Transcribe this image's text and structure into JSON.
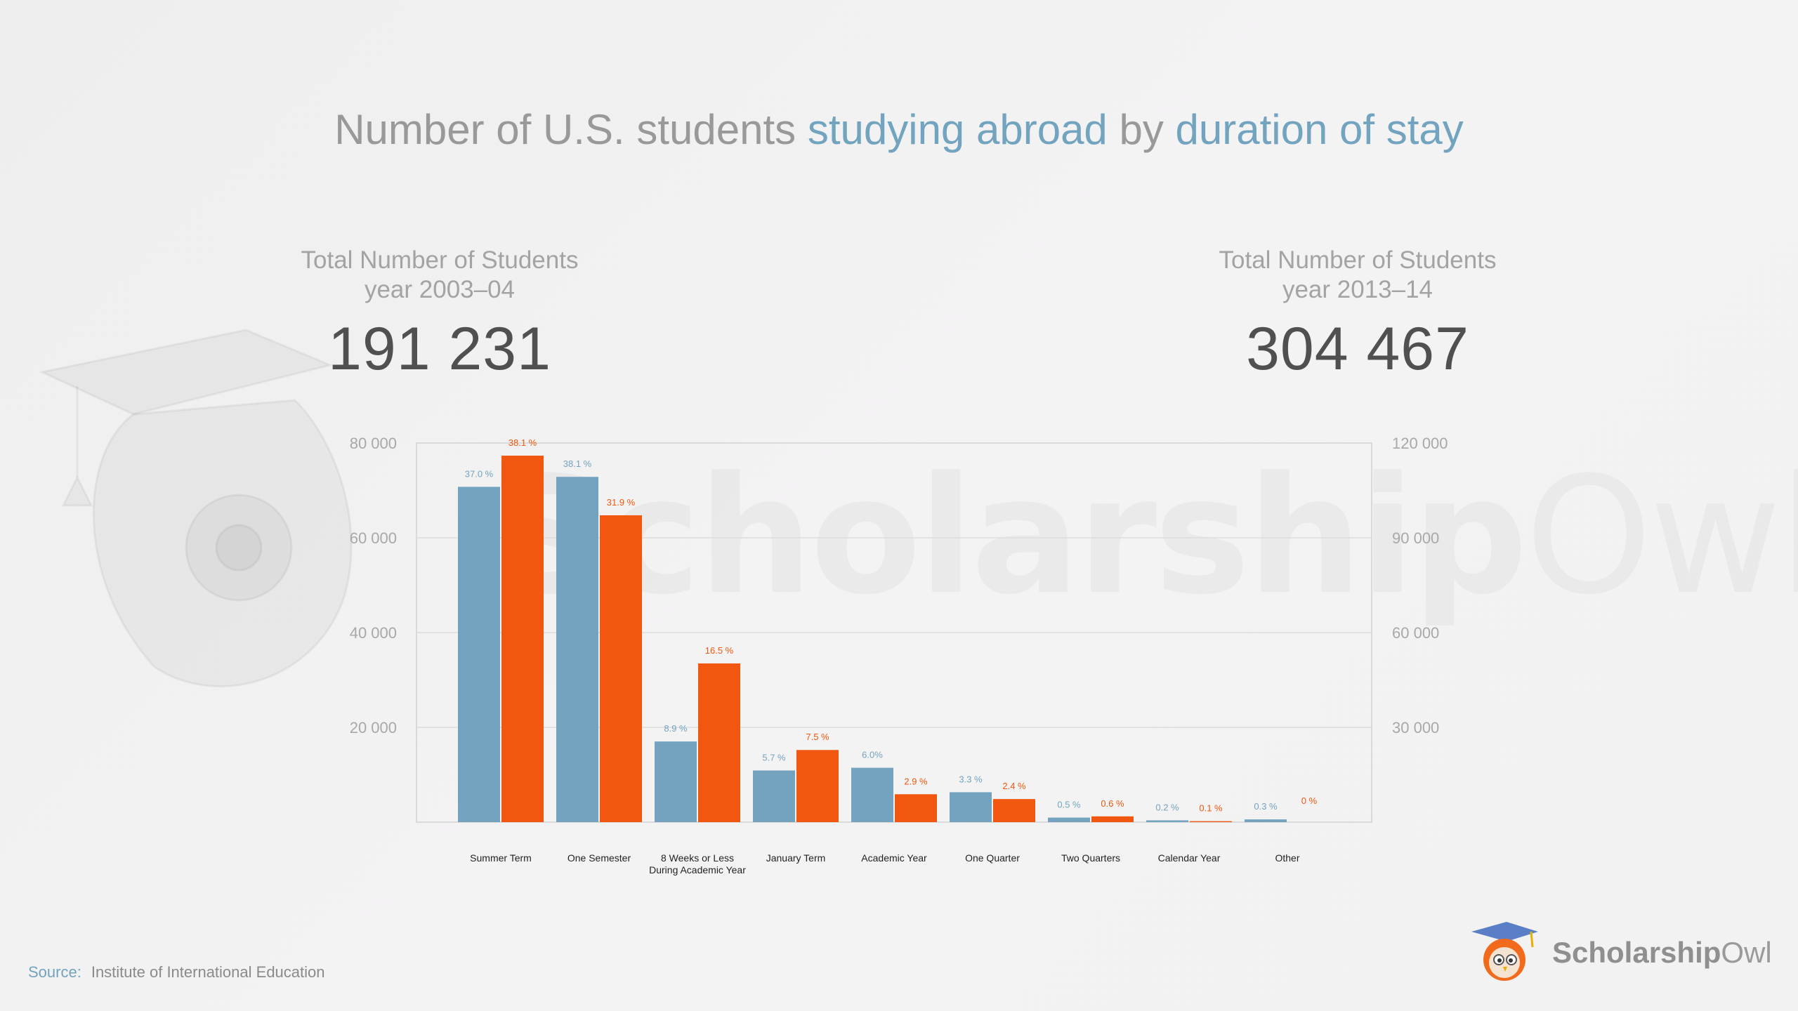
{
  "title": {
    "part1": "Number of U.S. students ",
    "part2": "studying abroad",
    "part3": " by ",
    "part4": "duration of stay"
  },
  "totals": {
    "left": {
      "label_line1": "Total Number of Students",
      "label_line2": "year 2003–04",
      "value": "191 231"
    },
    "right": {
      "label_line1": "Total Number of Students",
      "label_line2": "year 2013–14",
      "value": "304 467"
    }
  },
  "source": {
    "label": "Source:",
    "text": "Institute of International Education"
  },
  "brand": {
    "bold": "Scholarship",
    "light": "Owl"
  },
  "watermark": {
    "bold": "Scholarship",
    "light": "Owl"
  },
  "colors": {
    "series_2003": "#73a3bf",
    "series_2013": "#f2570f",
    "axis_text": "#a8a8a8",
    "grid": "#dddddd"
  },
  "chart_data": {
    "type": "bar",
    "categories": [
      "Summer Term",
      "One Semester",
      "8 Weeks or Less\nDuring Academic Year",
      "January Term",
      "Academic Year",
      "One Quarter",
      "Two Quarters",
      "Calendar Year",
      "Other"
    ],
    "series": [
      {
        "axis": "left",
        "values": [
          70755,
          72859,
          17020,
          10900,
          11474,
          6311,
          956,
          382,
          574
        ],
        "labels": [
          "37.0 %",
          "38.1 %",
          "8.9 %",
          "5.7 %",
          "6.0%",
          "3.3 %",
          "0.5 %",
          "0.2 %",
          "0.3 %"
        ]
      },
      {
        "axis": "right",
        "values": [
          116002,
          97125,
          50237,
          22835,
          8830,
          7307,
          1827,
          304,
          0
        ],
        "labels": [
          "38.1 %",
          "31.9 %",
          "16.5 %",
          "7.5 %",
          "2.9 %",
          "2.4 %",
          "0.6 %",
          "0.1 %",
          "0 %"
        ]
      }
    ],
    "y_left": {
      "min": 0,
      "max": 80000,
      "ticks": [
        20000,
        40000,
        60000,
        80000
      ],
      "tick_labels": [
        "20 000",
        "40 000",
        "60 000",
        "80 000"
      ]
    },
    "y_right": {
      "min": 0,
      "max": 120000,
      "ticks": [
        30000,
        60000,
        90000,
        120000
      ],
      "tick_labels": [
        "30 000",
        "60 000",
        "90 000",
        "120 000"
      ]
    },
    "grid": true
  }
}
